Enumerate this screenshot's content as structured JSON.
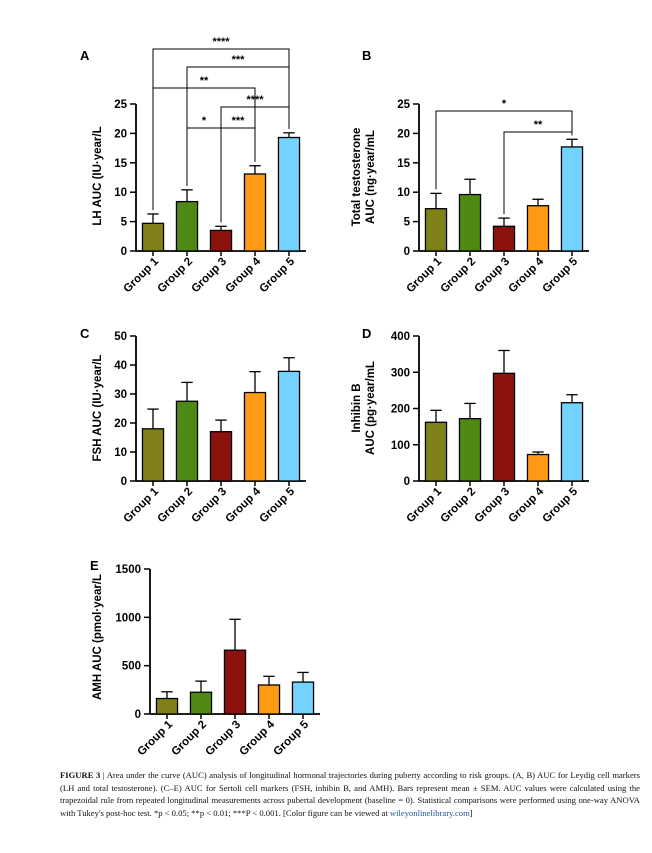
{
  "colors": {
    "group1": "#808019",
    "group2": "#4e8a13",
    "group3": "#8c120d",
    "group4": "#ff9a14",
    "group5": "#73d2ff",
    "axis": "#000000"
  },
  "chart_data": [
    {
      "type": "bar",
      "panel": "A",
      "title": "",
      "ylabel": "LH AUC (IU·year/L",
      "xlabel": "",
      "categories": [
        "Group 1",
        "Group 2",
        "Group 3",
        "Group 4",
        "Group 5"
      ],
      "values": [
        4.7,
        8.4,
        3.5,
        13.1,
        19.3
      ],
      "errors": [
        1.6,
        2.0,
        0.7,
        1.4,
        0.8
      ],
      "ylim": [
        0,
        25
      ],
      "yticks": [
        0,
        5,
        10,
        15,
        20,
        25
      ],
      "significance": [
        {
          "from": 1,
          "to": 5,
          "label": "****"
        },
        {
          "from": 2,
          "to": 5,
          "label": "***"
        },
        {
          "from": 1,
          "to": 4,
          "label": "**"
        },
        {
          "from": 3,
          "to": 5,
          "label": "****"
        },
        {
          "from": 2,
          "to": 3,
          "label": "*"
        },
        {
          "from": 3,
          "to": 4,
          "label": "***"
        }
      ]
    },
    {
      "type": "bar",
      "panel": "B",
      "title": "",
      "ylabel": "Total testosterone",
      "ylabel2": "AUC (ng·year/mL",
      "xlabel": "",
      "categories": [
        "Group 1",
        "Group 2",
        "Group 3",
        "Group 4",
        "Group 5"
      ],
      "values": [
        7.2,
        9.6,
        4.2,
        7.7,
        17.7
      ],
      "errors": [
        2.6,
        2.6,
        1.4,
        1.1,
        1.3
      ],
      "ylim": [
        0,
        25
      ],
      "yticks": [
        0,
        5,
        10,
        15,
        20,
        25
      ],
      "significance": [
        {
          "from": 1,
          "to": 5,
          "label": "*"
        },
        {
          "from": 3,
          "to": 5,
          "label": "**"
        }
      ]
    },
    {
      "type": "bar",
      "panel": "C",
      "title": "",
      "ylabel": "FSH AUC (IU·year/L",
      "xlabel": "",
      "categories": [
        "Group 1",
        "Group 2",
        "Group 3",
        "Group 4",
        "Group 5"
      ],
      "values": [
        18,
        27.5,
        17,
        30.5,
        37.8
      ],
      "errors": [
        6.8,
        6.5,
        4.0,
        7.2,
        4.7
      ],
      "ylim": [
        0,
        50
      ],
      "yticks": [
        0,
        10,
        20,
        30,
        40,
        50
      ],
      "significance": []
    },
    {
      "type": "bar",
      "panel": "D",
      "title": "",
      "ylabel": "Inhibin B",
      "ylabel2": "AUC (pg·year/mL",
      "xlabel": "",
      "categories": [
        "Group 1",
        "Group 2",
        "Group 3",
        "Group 4",
        "Group 5"
      ],
      "values": [
        162,
        172,
        297,
        73,
        216
      ],
      "errors": [
        33,
        42,
        63,
        7,
        22
      ],
      "ylim": [
        0,
        400
      ],
      "yticks": [
        0,
        100,
        200,
        300,
        400
      ],
      "significance": []
    },
    {
      "type": "bar",
      "panel": "E",
      "title": "",
      "ylabel": "AMH AUC (pmol·year/L",
      "xlabel": "",
      "categories": [
        "Group 1",
        "Group 2",
        "Group 3",
        "Group 4",
        "Group 5"
      ],
      "values": [
        160,
        225,
        660,
        300,
        330
      ],
      "errors": [
        70,
        115,
        320,
        90,
        100
      ],
      "ylim": [
        0,
        1500
      ],
      "yticks": [
        0,
        500,
        1000,
        1500
      ],
      "significance": []
    }
  ],
  "caption": {
    "label": "FIGURE 3",
    "separator": "|",
    "text": "Area under the curve (AUC) analysis of longitudinal hormonal trajectories during puberty according to risk groups. (A, B) AUC for Leydig cell markers (LH and total testosterone). (C–E) AUC for Sertoli cell markers (FSH, inhibin B, and AMH). Bars represent mean ± SEM. AUC values were calculated using the trapezoidal rule from repeated longitudinal measurements across pubertal development (baseline = 0). Statistical comparisons were performed using one-way ANOVA with Tukey's post-hoc test. *p < 0.05; **p < 0.01; ***P < 0.001. [Color figure can be viewed at",
    "link": "wileyonlinelibrary.com",
    "tail": "]"
  }
}
